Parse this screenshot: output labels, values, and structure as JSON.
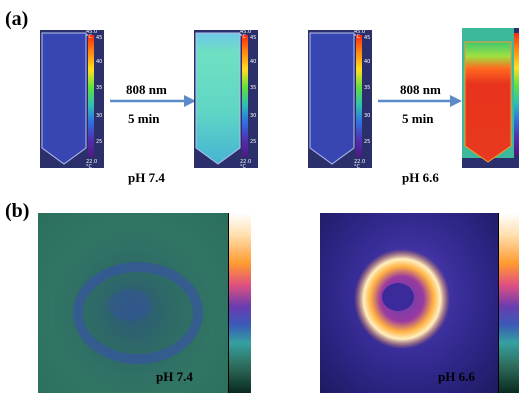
{
  "panel_a": {
    "label": "(a)",
    "left_arrow": {
      "wavelength": "808 nm",
      "duration": "5 min"
    },
    "right_arrow": {
      "wavelength": "808 nm",
      "duration": "5 min"
    },
    "left_ph": "pH 7.4",
    "right_ph": "pH 6.6",
    "colorbar": {
      "max_label": "45.0 °C",
      "min_label": "22.0 °C",
      "ticks": [
        "45",
        "40",
        "35",
        "30",
        "25"
      ]
    }
  },
  "panel_b": {
    "label": "(b)",
    "left_ph": "pH 7.4",
    "right_ph": "pH 6.6"
  },
  "colors": {
    "tube_cold": "#3a48b8",
    "tube_warm_ph74": "#5fd0c8",
    "tube_hot_ph66": "#e8331d",
    "arrow": "#5b8ac9",
    "pa_ph74_bg": "#2f6e62",
    "pa_ph66_bg": "#4a3aa8"
  }
}
